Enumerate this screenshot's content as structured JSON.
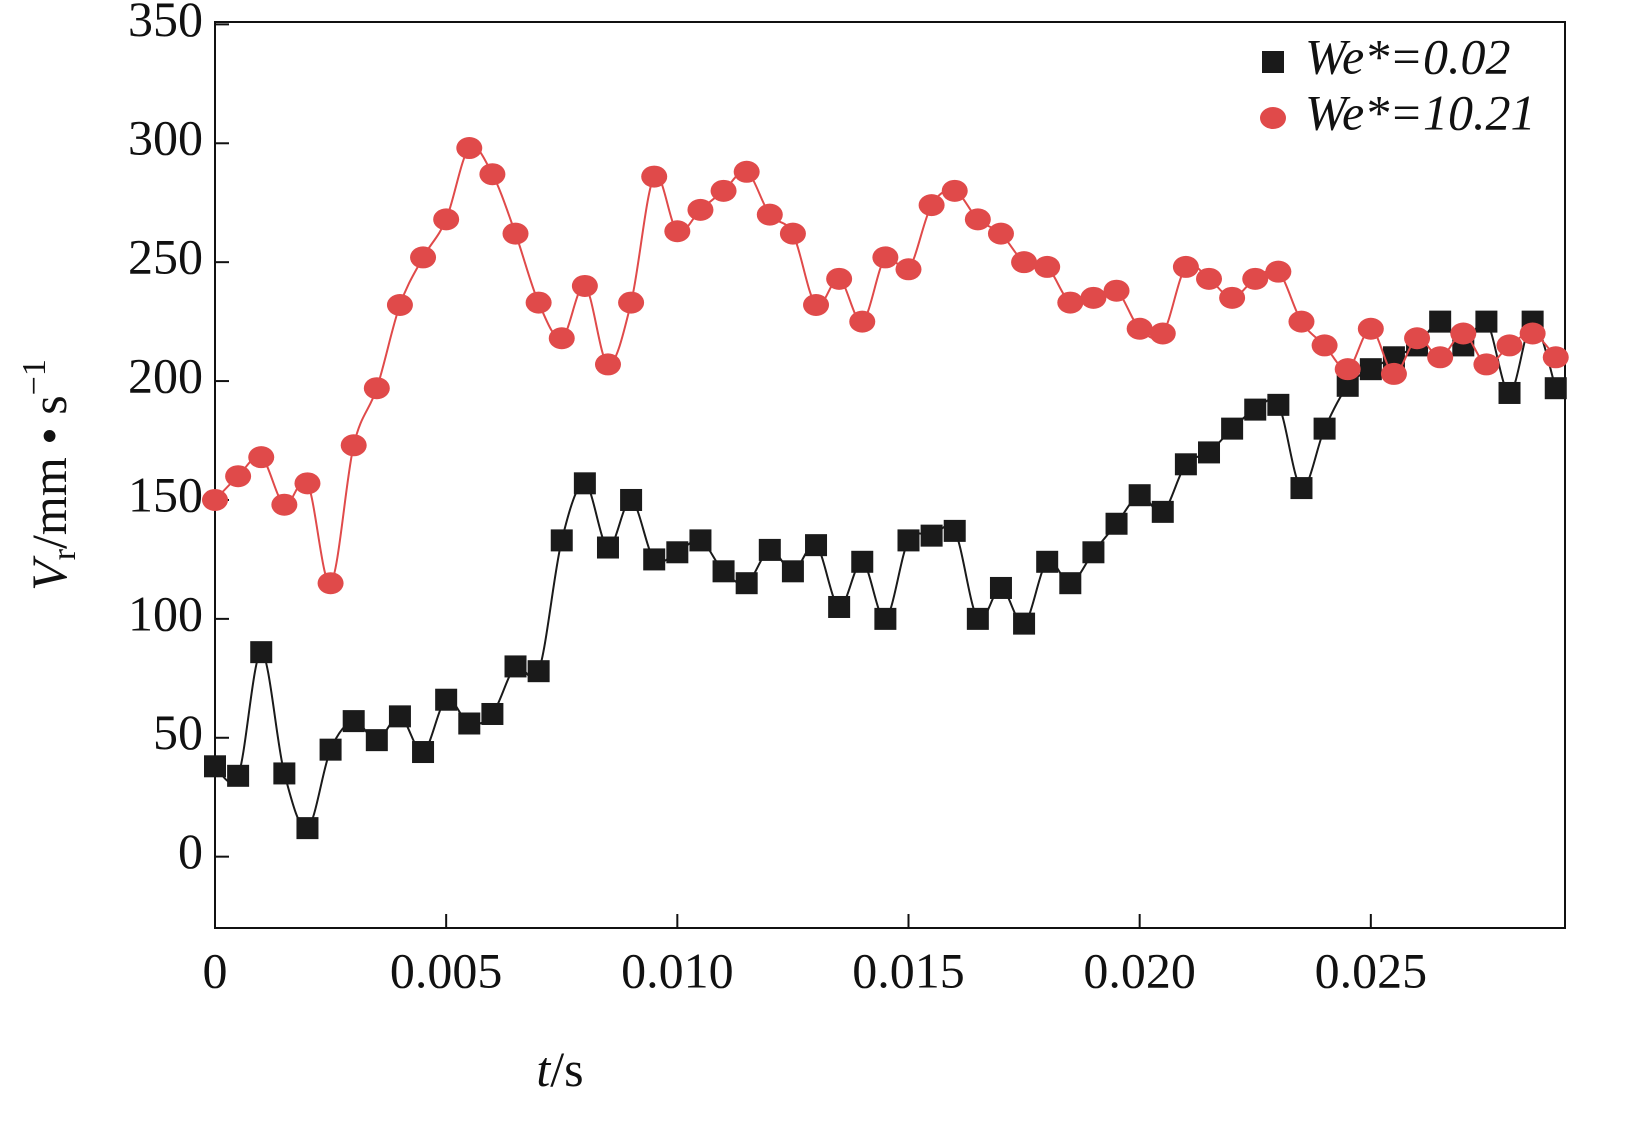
{
  "chart_data": {
    "type": "scatter",
    "xlabel": [
      "t",
      "/s"
    ],
    "ylabel": [
      "V",
      "r",
      "/mm • s",
      "−1"
    ],
    "x": [
      0,
      0.0005,
      0.001,
      0.0015,
      0.002,
      0.0025,
      0.003,
      0.0035,
      0.004,
      0.0045,
      0.005,
      0.0055,
      0.006,
      0.0065,
      0.007,
      0.0075,
      0.008,
      0.0085,
      0.009,
      0.0095,
      0.01,
      0.0105,
      0.011,
      0.0115,
      0.012,
      0.0125,
      0.013,
      0.0135,
      0.014,
      0.0145,
      0.015,
      0.0155,
      0.016,
      0.0165,
      0.017,
      0.0175,
      0.018,
      0.0185,
      0.019,
      0.0195,
      0.02,
      0.0205,
      0.021,
      0.0215,
      0.022,
      0.0225,
      0.023,
      0.0235,
      0.024,
      0.0245,
      0.025,
      0.0255,
      0.026,
      0.0265,
      0.027,
      0.0275,
      0.028,
      0.0285,
      0.029
    ],
    "series": [
      {
        "name": "We*=0.02",
        "color": "#1a1a1a",
        "marker": "square",
        "values": [
          38,
          34,
          86,
          35,
          12,
          45,
          57,
          49,
          59,
          44,
          66,
          56,
          60,
          80,
          78,
          133,
          157,
          130,
          150,
          125,
          128,
          133,
          120,
          115,
          129,
          120,
          131,
          105,
          124,
          100,
          133,
          135,
          137,
          100,
          113,
          98,
          124,
          115,
          128,
          140,
          152,
          145,
          165,
          170,
          180,
          188,
          190,
          155,
          180,
          198,
          205,
          210,
          215,
          225,
          215,
          225,
          195,
          225,
          197
        ]
      },
      {
        "name": "We*=10.21",
        "color": "#e04a4a",
        "marker": "circle",
        "values": [
          150,
          160,
          168,
          148,
          157,
          115,
          173,
          197,
          232,
          252,
          268,
          298,
          287,
          262,
          233,
          218,
          240,
          207,
          233,
          286,
          263,
          272,
          280,
          288,
          270,
          262,
          232,
          243,
          225,
          252,
          247,
          274,
          280,
          268,
          262,
          250,
          248,
          233,
          235,
          238,
          222,
          220,
          248,
          243,
          235,
          243,
          246,
          225,
          215,
          205,
          222,
          203,
          218,
          210,
          220,
          207,
          215,
          220,
          210
        ]
      }
    ],
    "xlim": [
      0,
      0.0292
    ],
    "ylim": [
      -30,
      351
    ],
    "xticks": [
      0,
      0.005,
      {
        "value": 0.01,
        "label": "0.010"
      },
      0.015,
      {
        "value": 0.02,
        "label": "0.020"
      },
      0.025
    ],
    "yticks": [
      0,
      50,
      100,
      150,
      200,
      250,
      300,
      350
    ],
    "legend": "upper right"
  }
}
